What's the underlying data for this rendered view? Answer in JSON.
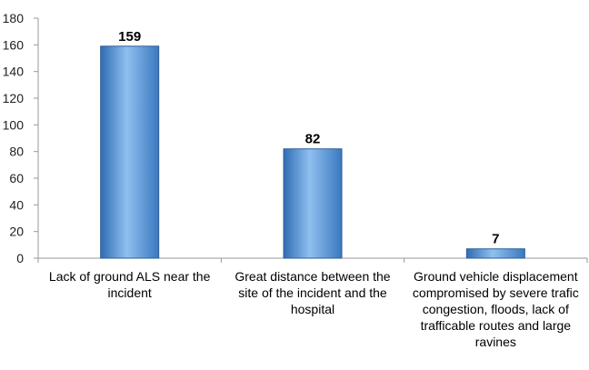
{
  "chart_data": {
    "type": "bar",
    "title": "",
    "xlabel": "",
    "ylabel": "",
    "categories": [
      "Lack of ground ALS near the incident",
      "Great distance between the site of the incident and the hospital",
      "Ground vehicle displacement compromised by severe trafic congestion, floods, lack of trafficable routes and large ravines"
    ],
    "values": [
      159,
      82,
      7
    ],
    "data_labels": [
      "159",
      "82",
      "7"
    ],
    "ylim": [
      0,
      180
    ],
    "yticks": [
      "0",
      "20",
      "40",
      "60",
      "80",
      "100",
      "120",
      "140",
      "160",
      "180"
    ],
    "grid": false,
    "legend": "none",
    "bar_color": "#5b9bd5",
    "bar_edge_color": "#2e5f9a",
    "axis_color": "#999999"
  }
}
